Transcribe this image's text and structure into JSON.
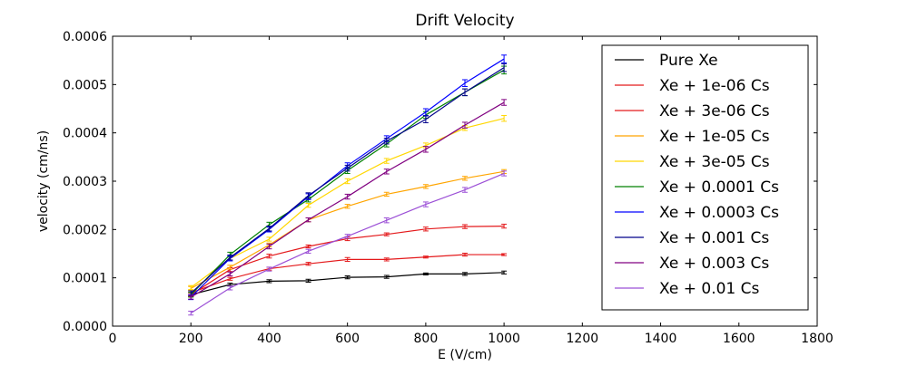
{
  "chart_data": {
    "type": "line",
    "title": "Drift Velocity",
    "xlabel": "E (V/cm)",
    "ylabel": "velocity (cm/ns)",
    "xlim": [
      0,
      1800
    ],
    "ylim": [
      0,
      0.0006
    ],
    "xticks": [
      "0",
      "200",
      "400",
      "600",
      "800",
      "1000",
      "1200",
      "1400",
      "1600",
      "1800"
    ],
    "yticks": [
      "0.0000",
      "0.0001",
      "0.0002",
      "0.0003",
      "0.0004",
      "0.0005",
      "0.0006"
    ],
    "legend_position": "top-right",
    "grid": false,
    "error_bars": true,
    "x": [
      200,
      300,
      400,
      500,
      600,
      700,
      800,
      900,
      1000
    ],
    "series": [
      {
        "name": "Pure Xe",
        "color": "#000000",
        "values": [
          6.5e-05,
          8.6e-05,
          9.3e-05,
          9.4e-05,
          0.000101,
          0.000102,
          0.000108,
          0.000108,
          0.000111
        ],
        "errors": [
          4e-06,
          3e-06,
          3e-06,
          3e-06,
          3e-06,
          3e-06,
          2e-06,
          3e-06,
          3e-06
        ]
      },
      {
        "name": "Xe + 1e-06 Cs",
        "color": "#e41a1c",
        "values": [
          6.9e-05,
          9.8e-05,
          0.000119,
          0.000129,
          0.000138,
          0.000138,
          0.000143,
          0.000148,
          0.000148
        ],
        "errors": [
          4e-06,
          3e-06,
          3e-06,
          3e-06,
          4e-06,
          3e-06,
          2e-06,
          3e-06,
          2e-06
        ]
      },
      {
        "name": "Xe + 3e-06 Cs",
        "color": "#e41a1c",
        "values": [
          6.5e-05,
          0.000117,
          0.000145,
          0.000165,
          0.000181,
          0.00019,
          0.000201,
          0.000206,
          0.000207
        ],
        "errors": [
          4e-06,
          4e-06,
          4e-06,
          3e-06,
          4e-06,
          3e-06,
          4e-06,
          4e-06,
          4e-06
        ]
      },
      {
        "name": "Xe + 1e-05 Cs",
        "color": "#ffa500",
        "values": [
          7.8e-05,
          0.000122,
          0.000168,
          0.00022,
          0.000248,
          0.000273,
          0.000289,
          0.000306,
          0.00032
        ],
        "errors": [
          4e-06,
          4e-06,
          4e-06,
          4e-06,
          4e-06,
          4e-06,
          4e-06,
          4e-06,
          4e-06
        ]
      },
      {
        "name": "Xe + 3e-05 Cs",
        "color": "#ffd700",
        "values": [
          8e-05,
          0.00014,
          0.00018,
          0.00025,
          0.0003,
          0.000342,
          0.000374,
          0.00041,
          0.00043
        ],
        "errors": [
          4e-06,
          4e-06,
          4e-06,
          4e-06,
          5e-06,
          5e-06,
          5e-06,
          5e-06,
          6e-06
        ]
      },
      {
        "name": "Xe + 0.0001 Cs",
        "color": "#008000",
        "values": [
          6.5e-05,
          0.000148,
          0.00021,
          0.000262,
          0.000322,
          0.000377,
          0.000437,
          0.000484,
          0.00053
        ],
        "errors": [
          5e-06,
          5e-06,
          5e-06,
          5e-06,
          6e-06,
          6e-06,
          7e-06,
          7e-06,
          8e-06
        ]
      },
      {
        "name": "Xe + 0.0003 Cs",
        "color": "#0000ff",
        "values": [
          6e-05,
          0.00014,
          0.0002,
          0.000268,
          0.000332,
          0.000388,
          0.000443,
          0.000503,
          0.000553
        ],
        "errors": [
          5e-06,
          5e-06,
          5e-06,
          6e-06,
          6e-06,
          6e-06,
          7e-06,
          7e-06,
          8e-06
        ]
      },
      {
        "name": "Xe + 0.001 Cs",
        "color": "#00008b",
        "values": [
          6.8e-05,
          0.000142,
          0.000202,
          0.00027,
          0.000327,
          0.000383,
          0.000428,
          0.000484,
          0.000535
        ],
        "errors": [
          5e-06,
          5e-06,
          5e-06,
          6e-06,
          6e-06,
          6e-06,
          7e-06,
          7e-06,
          8e-06
        ]
      },
      {
        "name": "Xe + 0.003 Cs",
        "color": "#800080",
        "values": [
          6e-05,
          0.000108,
          0.000165,
          0.00022,
          0.000268,
          0.00032,
          0.000366,
          0.000416,
          0.000463
        ],
        "errors": [
          4e-06,
          4e-06,
          5e-06,
          4e-06,
          5e-06,
          5e-06,
          6e-06,
          6e-06,
          6e-06
        ]
      },
      {
        "name": "Xe + 0.01 Cs",
        "color": "#9b4fd6",
        "values": [
          2.7e-05,
          7.9e-05,
          0.000118,
          0.000155,
          0.000186,
          0.000219,
          0.000252,
          0.000282,
          0.000316
        ],
        "errors": [
          4e-06,
          4e-06,
          4e-06,
          4e-06,
          4e-06,
          5e-06,
          5e-06,
          5e-06,
          5e-06
        ]
      }
    ]
  }
}
